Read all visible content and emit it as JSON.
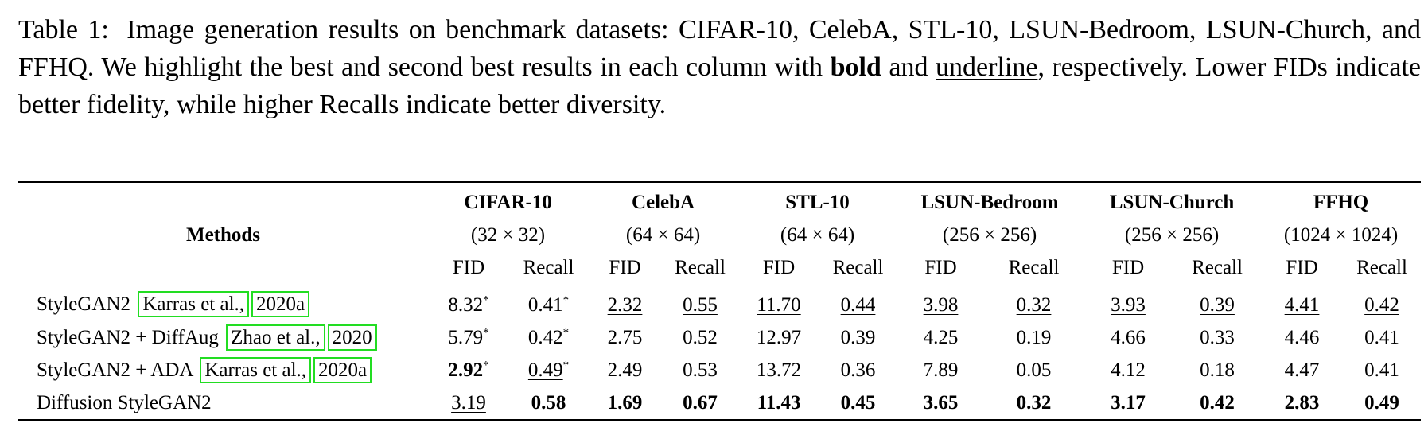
{
  "caption": {
    "label": "Table 1:",
    "segments": [
      "Image generation results on benchmark datasets: CIFAR-10, CelebA, STL-10, LSUN-Bedroom, LSUN-Church, and FFHQ. We highlight the best and second best results in each column with",
      "bold",
      "and",
      "underline",
      ", respectively.  Lower FIDs indicate better fidelity, while higher Recalls indicate better diversity."
    ]
  },
  "table": {
    "methods_header": "Methods",
    "datasets": [
      {
        "name": "CIFAR-10",
        "resolution": "(32 × 32)",
        "metrics": [
          "FID",
          "Recall"
        ]
      },
      {
        "name": "CelebA",
        "resolution": "(64 × 64)",
        "metrics": [
          "FID",
          "Recall"
        ]
      },
      {
        "name": "STL-10",
        "resolution": "(64 × 64)",
        "metrics": [
          "FID",
          "Recall"
        ]
      },
      {
        "name": "LSUN-Bedroom",
        "resolution": "(256 × 256)",
        "metrics": [
          "FID",
          "Recall"
        ]
      },
      {
        "name": "LSUN-Church",
        "resolution": "(256 × 256)",
        "metrics": [
          "FID",
          "Recall"
        ]
      },
      {
        "name": "FFHQ",
        "resolution": "(1024 × 1024)",
        "metrics": [
          "FID",
          "Recall"
        ]
      }
    ],
    "rows": [
      {
        "method": "StyleGAN2",
        "citation": [
          "Karras et al.,",
          "2020a"
        ],
        "cells": [
          {
            "value": "8.32",
            "mark": "*",
            "style": "plain"
          },
          {
            "value": "0.41",
            "mark": "*",
            "style": "plain"
          },
          {
            "value": "2.32",
            "style": "underline"
          },
          {
            "value": "0.55",
            "style": "underline"
          },
          {
            "value": "11.70",
            "style": "underline"
          },
          {
            "value": "0.44",
            "style": "underline"
          },
          {
            "value": "3.98",
            "style": "underline"
          },
          {
            "value": "0.32",
            "style": "underline"
          },
          {
            "value": "3.93",
            "style": "underline"
          },
          {
            "value": "0.39",
            "style": "underline"
          },
          {
            "value": "4.41",
            "style": "underline"
          },
          {
            "value": "0.42",
            "style": "underline"
          }
        ]
      },
      {
        "method": "StyleGAN2 + DiffAug",
        "citation": [
          "Zhao et al.,",
          "2020"
        ],
        "cells": [
          {
            "value": "5.79",
            "mark": "*",
            "style": "plain"
          },
          {
            "value": "0.42",
            "mark": "*",
            "style": "plain"
          },
          {
            "value": "2.75",
            "style": "plain"
          },
          {
            "value": "0.52",
            "style": "plain"
          },
          {
            "value": "12.97",
            "style": "plain"
          },
          {
            "value": "0.39",
            "style": "plain"
          },
          {
            "value": "4.25",
            "style": "plain"
          },
          {
            "value": "0.19",
            "style": "plain"
          },
          {
            "value": "4.66",
            "style": "plain"
          },
          {
            "value": "0.33",
            "style": "plain"
          },
          {
            "value": "4.46",
            "style": "plain"
          },
          {
            "value": "0.41",
            "style": "plain"
          }
        ]
      },
      {
        "method": "StyleGAN2 + ADA",
        "citation": [
          "Karras et al.,",
          "2020a"
        ],
        "cells": [
          {
            "value": "2.92",
            "mark": "*",
            "style": "bold"
          },
          {
            "value": "0.49",
            "mark": "*",
            "style": "underline"
          },
          {
            "value": "2.49",
            "style": "plain"
          },
          {
            "value": "0.53",
            "style": "plain"
          },
          {
            "value": "13.72",
            "style": "plain"
          },
          {
            "value": "0.36",
            "style": "plain"
          },
          {
            "value": "7.89",
            "style": "plain"
          },
          {
            "value": "0.05",
            "style": "plain"
          },
          {
            "value": "4.12",
            "style": "plain"
          },
          {
            "value": "0.18",
            "style": "plain"
          },
          {
            "value": "4.47",
            "style": "plain"
          },
          {
            "value": "0.41",
            "style": "plain"
          }
        ]
      },
      {
        "method": "Diffusion StyleGAN2",
        "cells": [
          {
            "value": "3.19",
            "style": "underline"
          },
          {
            "value": "0.58",
            "style": "bold"
          },
          {
            "value": "1.69",
            "style": "bold"
          },
          {
            "value": "0.67",
            "style": "bold"
          },
          {
            "value": "11.43",
            "style": "bold"
          },
          {
            "value": "0.45",
            "style": "bold"
          },
          {
            "value": "3.65",
            "style": "bold"
          },
          {
            "value": "0.32",
            "style": "bold"
          },
          {
            "value": "3.17",
            "style": "bold"
          },
          {
            "value": "0.42",
            "style": "bold"
          },
          {
            "value": "2.83",
            "style": "bold"
          },
          {
            "value": "0.49",
            "style": "bold"
          }
        ]
      }
    ]
  }
}
